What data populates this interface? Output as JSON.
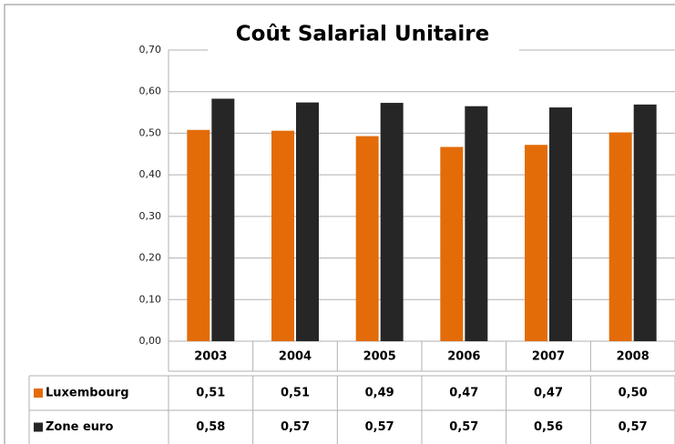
{
  "chart_data": {
    "type": "bar",
    "title": "Coût Salarial Unitaire",
    "categories": [
      "2003",
      "2004",
      "2005",
      "2006",
      "2007",
      "2008"
    ],
    "series": [
      {
        "name": "Luxembourg",
        "color": "#e36c09",
        "values": [
          0.508,
          0.506,
          0.493,
          0.467,
          0.472,
          0.502
        ],
        "value_labels": [
          "0,51",
          "0,51",
          "0,49",
          "0,47",
          "0,47",
          "0,50"
        ]
      },
      {
        "name": "Zone euro",
        "color": "#262626",
        "values": [
          0.583,
          0.574,
          0.573,
          0.565,
          0.562,
          0.569
        ],
        "value_labels": [
          "0,58",
          "0,57",
          "0,57",
          "0,57",
          "0,56",
          "0,57"
        ]
      }
    ],
    "ylim": [
      0,
      0.7
    ],
    "yticks": [
      {
        "value": 0,
        "label": "0,00"
      },
      {
        "value": 0.1,
        "label": "0,10"
      },
      {
        "value": 0.2,
        "label": "0,20"
      },
      {
        "value": 0.3,
        "label": "0,30"
      },
      {
        "value": 0.4,
        "label": "0,40"
      },
      {
        "value": 0.5,
        "label": "0,50"
      },
      {
        "value": 0.6,
        "label": "0,60"
      },
      {
        "value": 0.7,
        "label": "0,70"
      }
    ],
    "grid": true
  }
}
